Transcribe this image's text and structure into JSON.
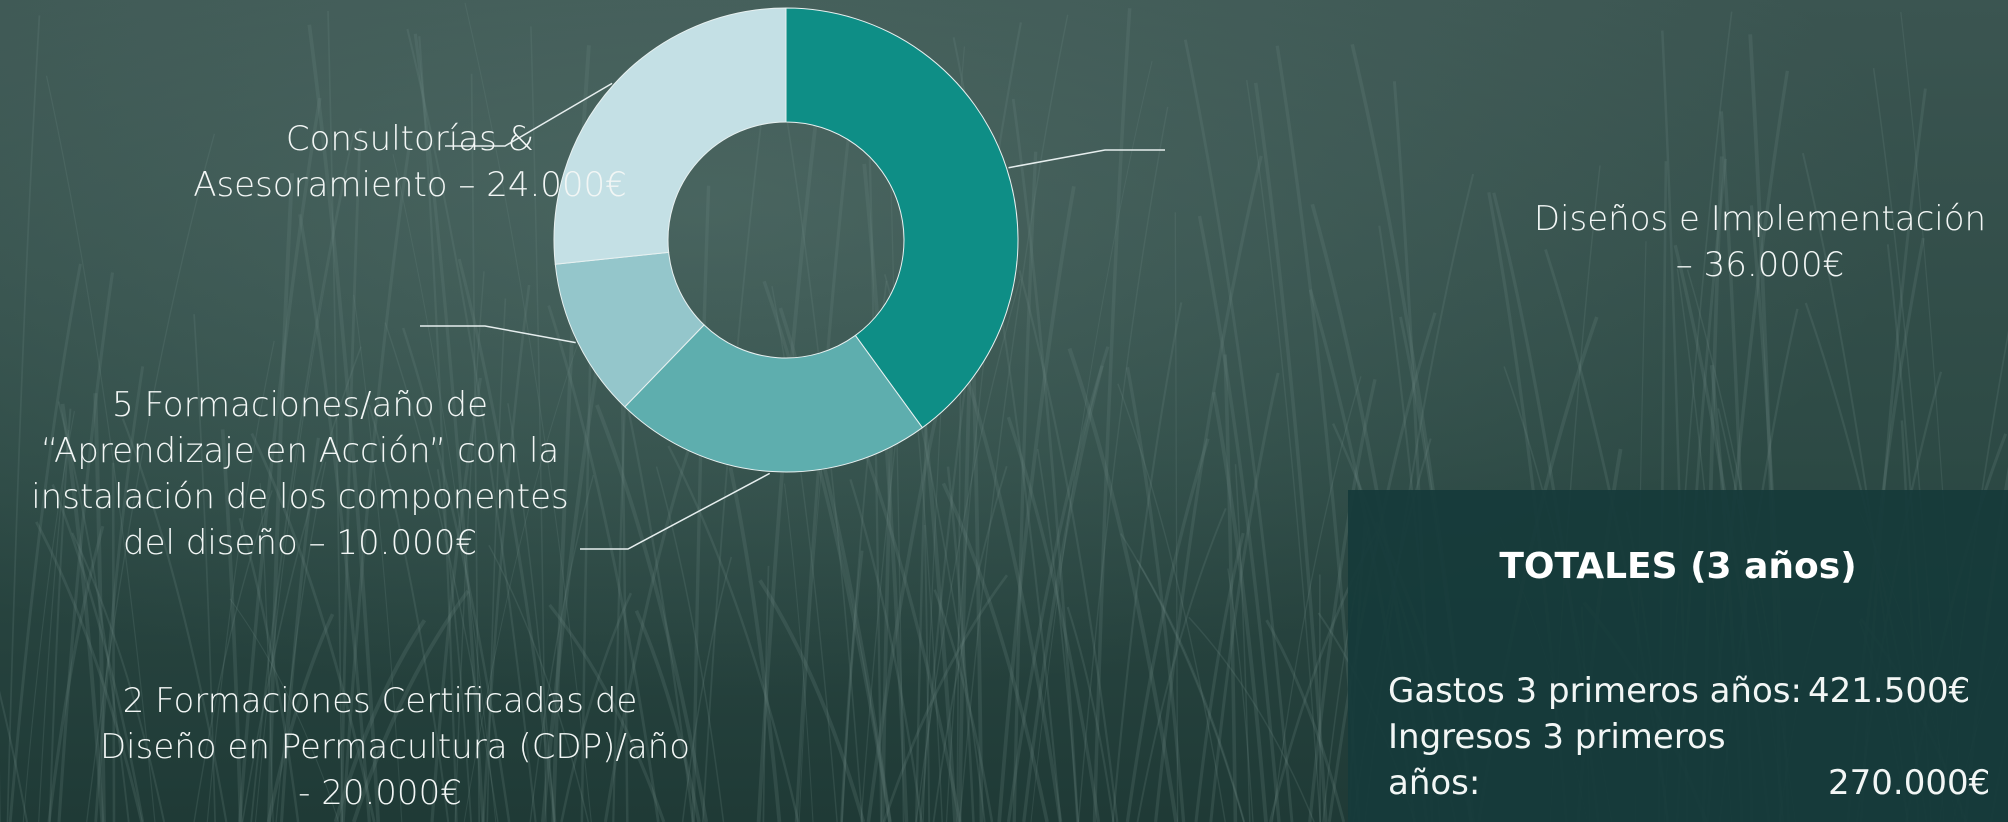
{
  "chart_data": {
    "type": "pie",
    "title": "",
    "slices": [
      {
        "label_lines": [
          "Diseños e Implementación",
          "– 36.000€"
        ],
        "value": 36000,
        "color": "#0e8e86"
      },
      {
        "label_lines": [
          "2 Formaciones Certificadas de",
          "Diseño en Permacultura (CDP)/año",
          "- 20.000€"
        ],
        "value": 20000,
        "color": "#5eaeae"
      },
      {
        "label_lines": [
          "5 Formaciones/año de",
          "“Aprendizaje en Acción” con la",
          "instalación de los componentes",
          "del diseño – 10.000€"
        ],
        "value": 10000,
        "color": "#94c6cb"
      },
      {
        "label_lines": [
          "Consultorías &",
          "Asesoramiento – 24.000€"
        ],
        "value": 24000,
        "color": "#c4e0e5"
      }
    ],
    "legend": "none"
  },
  "totals": {
    "title": "TOTALES (3 años)",
    "gastos_label": "Gastos 3 primeros años:",
    "gastos_value": "421.500€",
    "ingresos_label_line1": "Ingresos 3 primeros",
    "ingresos_label_line2": "años:",
    "ingresos_value": "270.000€"
  }
}
